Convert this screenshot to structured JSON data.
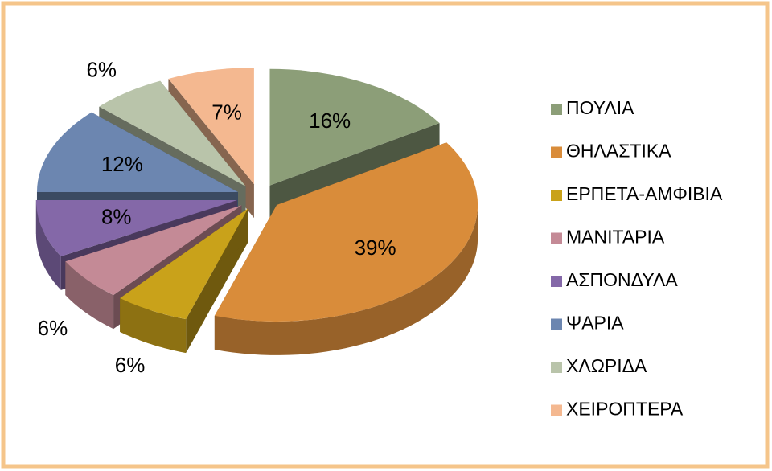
{
  "chart_data": {
    "type": "pie",
    "categories": [
      "ΠΟΥΛΙΑ",
      "ΘΗΛΑΣΤΙΚΑ",
      "ΕΡΠΕΤΑ-ΑΜΦΙΒΙΑ",
      "ΜΑΝΙΤΑΡΙΑ",
      "ΑΣΠΟΝΔΥΛΑ",
      "ΨΑΡΙΑ",
      "ΧΛΩΡΙΔΑ",
      "ΧΕΙΡΟΠΤΕΡΑ"
    ],
    "values": [
      16,
      39,
      6,
      6,
      8,
      12,
      6,
      7
    ],
    "value_labels": [
      "16%",
      "39%",
      "6%",
      "6%",
      "8%",
      "12%",
      "6%",
      "7%"
    ],
    "colors": [
      "#8c9e78",
      "#d98c3a",
      "#c9a21a",
      "#c48a96",
      "#8468a8",
      "#6c86b0",
      "#b9c4aa",
      "#f4b890"
    ],
    "legend": "right"
  }
}
